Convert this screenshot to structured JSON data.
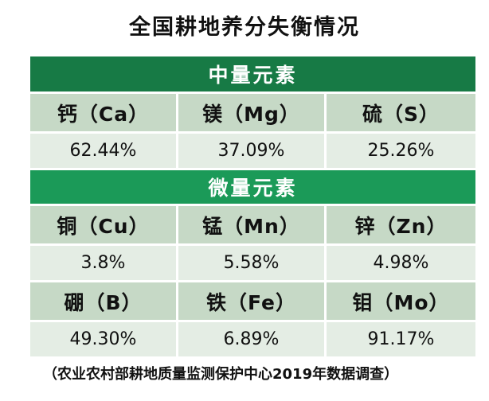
{
  "chart_data": {
    "type": "table",
    "title": "全国耕地养分失衡情况",
    "sections": [
      {
        "name": "中量元素",
        "items": [
          {
            "label": "钙（Ca）",
            "value": "62.44%"
          },
          {
            "label": "镁（Mg）",
            "value": "37.09%"
          },
          {
            "label": "硫（S）",
            "value": "25.26%"
          }
        ]
      },
      {
        "name": "微量元素",
        "items": [
          {
            "label": "铜（Cu）",
            "value": "3.8%"
          },
          {
            "label": "锰（Mn）",
            "value": "5.58%"
          },
          {
            "label": "锌（Zn）",
            "value": "4.98%"
          },
          {
            "label": "硼（B）",
            "value": "49.30%"
          },
          {
            "label": "铁（Fe）",
            "value": "6.89%"
          },
          {
            "label": "钼（Mo）",
            "value": "91.17%"
          }
        ]
      }
    ],
    "footnote": "（农业农村部耕地质量监测保护中心2019年数据调查）"
  }
}
